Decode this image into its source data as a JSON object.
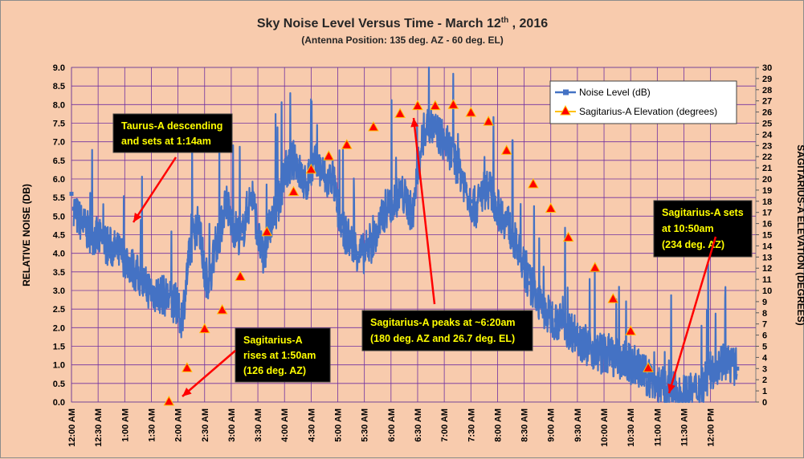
{
  "chart_data": {
    "type": "line",
    "title": "Sky Noise Level  Versus Time - March 12",
    "title_superscript": "th",
    "title_suffix": " , 2016",
    "subtitle": "(Antenna Position: 135  deg. AZ - 60 deg. EL)",
    "ylabel": "RELATIVE NOISE (DB)",
    "y2label": "SAGITARIUS-A ELEVATION (DEGREES)",
    "ylim": [
      0,
      9
    ],
    "y2lim": [
      0,
      30
    ],
    "xlim_hours": [
      0,
      12.85
    ],
    "grid": true,
    "legend_position": "top-right",
    "y_ticks": [
      "0.0",
      "0.5",
      "1.0",
      "1.5",
      "2.0",
      "2.5",
      "3.0",
      "3.5",
      "4.0",
      "4.5",
      "5.0",
      "5.5",
      "6.0",
      "6.5",
      "7.0",
      "7.5",
      "8.0",
      "8.5",
      "9.0"
    ],
    "y2_ticks": [
      "0",
      "1",
      "2",
      "3",
      "4",
      "5",
      "6",
      "7",
      "8",
      "9",
      "10",
      "11",
      "12",
      "13",
      "14",
      "15",
      "16",
      "17",
      "18",
      "19",
      "20",
      "21",
      "22",
      "23",
      "24",
      "25",
      "26",
      "27",
      "28",
      "29",
      "30"
    ],
    "x_ticks": [
      "12:00 AM",
      "12:30 AM",
      "1:00 AM",
      "1:30 AM",
      "2:00 AM",
      "2:30 AM",
      "3:00 AM",
      "3:30 AM",
      "4:00 AM",
      "4:30 AM",
      "5:00 AM",
      "5:30 AM",
      "6:00 AM",
      "6:30 AM",
      "7:00 AM",
      "7:30 AM",
      "8:00 AM",
      "8:30 AM",
      "9:00 AM",
      "9:30 AM",
      "10:00 AM",
      "10:30 AM",
      "11:00 AM",
      "11:30 AM",
      "12:00 PM"
    ],
    "series": [
      {
        "name": "Noise Level (dB)",
        "color": "#4472c4",
        "axis": "left",
        "x_hours": [
          0.0,
          0.05,
          0.1,
          0.15,
          0.2,
          0.3,
          0.4,
          0.5,
          0.6,
          0.7,
          0.8,
          0.9,
          1.0,
          1.1,
          1.2,
          1.3,
          1.4,
          1.5,
          1.6,
          1.7,
          1.8,
          1.9,
          2.0,
          2.05,
          2.1,
          2.2,
          2.3,
          2.4,
          2.5,
          2.6,
          2.7,
          2.8,
          2.9,
          3.0,
          3.1,
          3.2,
          3.3,
          3.4,
          3.5,
          3.6,
          3.7,
          3.8,
          3.9,
          4.0,
          4.1,
          4.2,
          4.3,
          4.4,
          4.5,
          4.6,
          4.7,
          4.8,
          4.9,
          5.0,
          5.1,
          5.2,
          5.3,
          5.4,
          5.5,
          5.6,
          5.7,
          5.8,
          5.9,
          6.0,
          6.1,
          6.2,
          6.3,
          6.4,
          6.5,
          6.6,
          6.7,
          6.8,
          6.9,
          7.0,
          7.1,
          7.2,
          7.3,
          7.4,
          7.5,
          7.6,
          7.7,
          7.8,
          7.9,
          8.0,
          8.1,
          8.2,
          8.3,
          8.4,
          8.5,
          8.6,
          8.7,
          8.8,
          8.9,
          9.0,
          9.1,
          9.2,
          9.3,
          9.4,
          9.5,
          9.6,
          9.7,
          9.8,
          9.9,
          10.0,
          10.1,
          10.2,
          10.3,
          10.4,
          10.5,
          10.6,
          10.7,
          10.8,
          10.9,
          11.0,
          11.1,
          11.2,
          11.3,
          11.4,
          11.5,
          11.6,
          11.7,
          11.8,
          11.9,
          12.0,
          12.1,
          12.2,
          12.3,
          12.4,
          12.5
        ],
        "values": [
          5.6,
          5.2,
          5.0,
          4.9,
          4.8,
          4.6,
          4.5,
          4.4,
          4.3,
          4.2,
          4.1,
          4.0,
          3.9,
          3.7,
          3.5,
          3.3,
          3.1,
          3.0,
          2.9,
          2.9,
          2.8,
          2.7,
          2.5,
          2.2,
          2.5,
          3.8,
          4.6,
          4.8,
          3.4,
          3.3,
          4.2,
          4.6,
          5.5,
          4.8,
          4.6,
          4.4,
          5.2,
          5.6,
          4.5,
          3.8,
          4.6,
          5.0,
          5.4,
          6.2,
          6.3,
          6.6,
          6.1,
          5.8,
          6.3,
          6.4,
          6.2,
          5.9,
          6.1,
          5.2,
          4.6,
          4.4,
          4.2,
          4.0,
          4.0,
          4.2,
          4.4,
          4.8,
          5.2,
          5.3,
          5.5,
          5.6,
          5.4,
          5.0,
          6.2,
          7.1,
          7.5,
          7.3,
          7.2,
          7.0,
          6.8,
          6.5,
          6.2,
          5.8,
          5.4,
          5.2,
          5.6,
          5.8,
          5.6,
          5.2,
          5.0,
          4.8,
          4.4,
          4.0,
          3.6,
          3.2,
          3.0,
          2.6,
          2.4,
          2.3,
          2.2,
          2.1,
          2.0,
          1.9,
          1.8,
          1.6,
          1.5,
          1.4,
          1.3,
          1.3,
          1.3,
          1.2,
          1.1,
          1.1,
          1.0,
          1.0,
          0.8,
          0.7,
          0.6,
          0.5,
          0.4,
          0.3,
          0.3,
          0.2,
          0.2,
          0.2,
          0.3,
          0.4,
          0.6,
          0.8,
          1.0,
          1.1,
          1.1,
          1.0,
          0.9
        ]
      },
      {
        "name": "Sagitarius-A Elevation (degrees)",
        "color": "#ff0000",
        "line_color": "#ffc000",
        "axis": "right",
        "x_hours": [
          1.83,
          2.17,
          2.5,
          2.83,
          3.17,
          3.67,
          4.17,
          4.5,
          4.83,
          5.17,
          5.67,
          6.17,
          6.5,
          6.83,
          7.17,
          7.5,
          7.83,
          8.17,
          8.67,
          9.0,
          9.33,
          9.83,
          10.17,
          10.5,
          10.83
        ],
        "values": [
          0,
          3,
          6.5,
          8.2,
          11.2,
          15.2,
          18.8,
          20.8,
          22,
          23,
          24.6,
          25.8,
          26.5,
          26.5,
          26.6,
          25.9,
          25.1,
          22.5,
          19.5,
          17.3,
          14.7,
          12,
          9.2,
          6.3,
          3
        ]
      }
    ],
    "annotations": [
      {
        "lines": [
          "Taurus-A descending",
          "and sets at 1:14am"
        ]
      },
      {
        "lines": [
          "Sagitarius-A",
          "rises at 1:50am",
          "(126 deg. AZ)"
        ]
      },
      {
        "lines": [
          "Sagitarius-A peaks at ~6:20am",
          "(180 deg. AZ and 26.7 deg. EL)"
        ]
      },
      {
        "lines": [
          "Sagitarius-A sets",
          "at 10:50am",
          "(234 deg. AZ)"
        ]
      }
    ]
  }
}
